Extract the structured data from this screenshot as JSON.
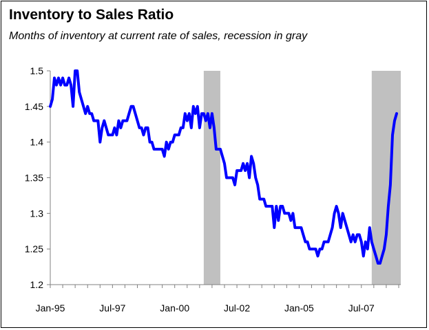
{
  "chart_data": {
    "type": "line",
    "title": "Inventory to Sales Ratio",
    "subtitle": "Months of inventory at current rate of sales, recession in gray",
    "xlabel": "",
    "ylabel": "",
    "x_tick_labels": [
      "Jan-95",
      "Jul-97",
      "Jan-00",
      "Jul-02",
      "Jan-05",
      "Jul-07"
    ],
    "x_range": [
      "1995-01",
      "2009-02"
    ],
    "y_ticks": [
      1.2,
      1.25,
      1.3,
      1.35,
      1.4,
      1.45,
      1.5
    ],
    "y_tick_labels": [
      "1.2",
      "1.25",
      "1.3",
      "1.35",
      "1.4",
      "1.45",
      "1.5"
    ],
    "ylim": [
      1.2,
      1.5
    ],
    "grid": false,
    "legend": "none",
    "line_color": "#0000ff",
    "recession_color": "#c0c0c0",
    "recessions": [
      {
        "start": "2001-03",
        "end": "2001-11"
      },
      {
        "start": "2007-12",
        "end": "2009-02"
      }
    ],
    "series": [
      {
        "values": [
          [
            "1995-01",
            1.45
          ],
          [
            "1995-02",
            1.46
          ],
          [
            "1995-03",
            1.49
          ],
          [
            "1995-04",
            1.48
          ],
          [
            "1995-05",
            1.49
          ],
          [
            "1995-06",
            1.48
          ],
          [
            "1995-07",
            1.49
          ],
          [
            "1995-08",
            1.48
          ],
          [
            "1995-09",
            1.48
          ],
          [
            "1995-10",
            1.49
          ],
          [
            "1995-11",
            1.48
          ],
          [
            "1995-12",
            1.45
          ],
          [
            "1996-01",
            1.5
          ],
          [
            "1996-02",
            1.5
          ],
          [
            "1996-03",
            1.47
          ],
          [
            "1996-04",
            1.46
          ],
          [
            "1996-05",
            1.45
          ],
          [
            "1996-06",
            1.44
          ],
          [
            "1996-07",
            1.45
          ],
          [
            "1996-08",
            1.44
          ],
          [
            "1996-09",
            1.44
          ],
          [
            "1996-10",
            1.43
          ],
          [
            "1996-11",
            1.43
          ],
          [
            "1996-12",
            1.43
          ],
          [
            "1997-01",
            1.4
          ],
          [
            "1997-02",
            1.42
          ],
          [
            "1997-03",
            1.43
          ],
          [
            "1997-04",
            1.42
          ],
          [
            "1997-05",
            1.41
          ],
          [
            "1997-06",
            1.41
          ],
          [
            "1997-07",
            1.41
          ],
          [
            "1997-08",
            1.42
          ],
          [
            "1997-09",
            1.41
          ],
          [
            "1997-10",
            1.43
          ],
          [
            "1997-11",
            1.42
          ],
          [
            "1997-12",
            1.43
          ],
          [
            "1998-01",
            1.43
          ],
          [
            "1998-02",
            1.43
          ],
          [
            "1998-03",
            1.44
          ],
          [
            "1998-04",
            1.45
          ],
          [
            "1998-05",
            1.45
          ],
          [
            "1998-06",
            1.44
          ],
          [
            "1998-07",
            1.43
          ],
          [
            "1998-08",
            1.42
          ],
          [
            "1998-09",
            1.42
          ],
          [
            "1998-10",
            1.41
          ],
          [
            "1998-11",
            1.42
          ],
          [
            "1998-12",
            1.42
          ],
          [
            "1999-01",
            1.4
          ],
          [
            "1999-02",
            1.4
          ],
          [
            "1999-03",
            1.39
          ],
          [
            "1999-04",
            1.39
          ],
          [
            "1999-05",
            1.39
          ],
          [
            "1999-06",
            1.39
          ],
          [
            "1999-07",
            1.39
          ],
          [
            "1999-08",
            1.38
          ],
          [
            "1999-09",
            1.4
          ],
          [
            "1999-10",
            1.39
          ],
          [
            "1999-11",
            1.4
          ],
          [
            "1999-12",
            1.4
          ],
          [
            "2000-01",
            1.41
          ],
          [
            "2000-02",
            1.41
          ],
          [
            "2000-03",
            1.41
          ],
          [
            "2000-04",
            1.42
          ],
          [
            "2000-05",
            1.42
          ],
          [
            "2000-06",
            1.44
          ],
          [
            "2000-07",
            1.43
          ],
          [
            "2000-08",
            1.44
          ],
          [
            "2000-09",
            1.42
          ],
          [
            "2000-10",
            1.45
          ],
          [
            "2000-11",
            1.44
          ],
          [
            "2000-12",
            1.45
          ],
          [
            "2001-01",
            1.42
          ],
          [
            "2001-02",
            1.44
          ],
          [
            "2001-03",
            1.44
          ],
          [
            "2001-04",
            1.43
          ],
          [
            "2001-05",
            1.44
          ],
          [
            "2001-06",
            1.42
          ],
          [
            "2001-07",
            1.44
          ],
          [
            "2001-08",
            1.42
          ],
          [
            "2001-09",
            1.39
          ],
          [
            "2001-10",
            1.39
          ],
          [
            "2001-11",
            1.39
          ],
          [
            "2001-12",
            1.38
          ],
          [
            "2002-01",
            1.37
          ],
          [
            "2002-02",
            1.35
          ],
          [
            "2002-03",
            1.35
          ],
          [
            "2002-04",
            1.35
          ],
          [
            "2002-05",
            1.35
          ],
          [
            "2002-06",
            1.34
          ],
          [
            "2002-07",
            1.36
          ],
          [
            "2002-08",
            1.36
          ],
          [
            "2002-09",
            1.36
          ],
          [
            "2002-10",
            1.37
          ],
          [
            "2002-11",
            1.36
          ],
          [
            "2002-12",
            1.37
          ],
          [
            "2003-01",
            1.35
          ],
          [
            "2003-02",
            1.38
          ],
          [
            "2003-03",
            1.37
          ],
          [
            "2003-04",
            1.35
          ],
          [
            "2003-05",
            1.34
          ],
          [
            "2003-06",
            1.32
          ],
          [
            "2003-07",
            1.32
          ],
          [
            "2003-08",
            1.32
          ],
          [
            "2003-09",
            1.31
          ],
          [
            "2003-10",
            1.31
          ],
          [
            "2003-11",
            1.31
          ],
          [
            "2003-12",
            1.31
          ],
          [
            "2004-01",
            1.28
          ],
          [
            "2004-02",
            1.31
          ],
          [
            "2004-03",
            1.29
          ],
          [
            "2004-04",
            1.31
          ],
          [
            "2004-05",
            1.31
          ],
          [
            "2004-06",
            1.3
          ],
          [
            "2004-07",
            1.3
          ],
          [
            "2004-08",
            1.3
          ],
          [
            "2004-09",
            1.29
          ],
          [
            "2004-10",
            1.3
          ],
          [
            "2004-11",
            1.28
          ],
          [
            "2004-12",
            1.28
          ],
          [
            "2005-01",
            1.28
          ],
          [
            "2005-02",
            1.28
          ],
          [
            "2005-03",
            1.27
          ],
          [
            "2005-04",
            1.26
          ],
          [
            "2005-05",
            1.26
          ],
          [
            "2005-06",
            1.25
          ],
          [
            "2005-07",
            1.25
          ],
          [
            "2005-08",
            1.25
          ],
          [
            "2005-09",
            1.25
          ],
          [
            "2005-10",
            1.24
          ],
          [
            "2005-11",
            1.25
          ],
          [
            "2005-12",
            1.25
          ],
          [
            "2006-01",
            1.26
          ],
          [
            "2006-02",
            1.26
          ],
          [
            "2006-03",
            1.26
          ],
          [
            "2006-04",
            1.27
          ],
          [
            "2006-05",
            1.28
          ],
          [
            "2006-06",
            1.3
          ],
          [
            "2006-07",
            1.31
          ],
          [
            "2006-08",
            1.3
          ],
          [
            "2006-09",
            1.28
          ],
          [
            "2006-10",
            1.3
          ],
          [
            "2006-11",
            1.29
          ],
          [
            "2006-12",
            1.28
          ],
          [
            "2007-01",
            1.27
          ],
          [
            "2007-02",
            1.26
          ],
          [
            "2007-03",
            1.27
          ],
          [
            "2007-04",
            1.26
          ],
          [
            "2007-05",
            1.27
          ],
          [
            "2007-06",
            1.27
          ],
          [
            "2007-07",
            1.26
          ],
          [
            "2007-08",
            1.24
          ],
          [
            "2007-09",
            1.26
          ],
          [
            "2007-10",
            1.25
          ],
          [
            "2007-11",
            1.28
          ],
          [
            "2007-12",
            1.26
          ],
          [
            "2008-01",
            1.25
          ],
          [
            "2008-02",
            1.24
          ],
          [
            "2008-03",
            1.23
          ],
          [
            "2008-04",
            1.23
          ],
          [
            "2008-05",
            1.24
          ],
          [
            "2008-06",
            1.25
          ],
          [
            "2008-07",
            1.27
          ],
          [
            "2008-08",
            1.31
          ],
          [
            "2008-09",
            1.34
          ],
          [
            "2008-10",
            1.41
          ],
          [
            "2008-11",
            1.43
          ],
          [
            "2008-12",
            1.44
          ]
        ]
      }
    ]
  }
}
